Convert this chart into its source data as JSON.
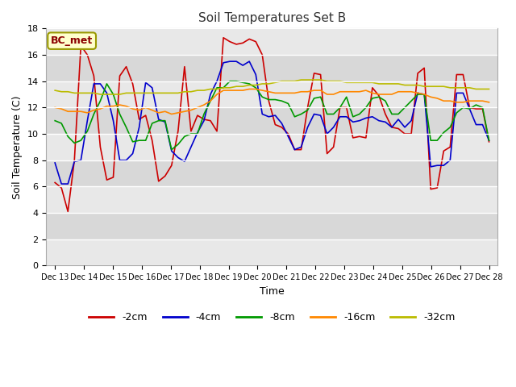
{
  "title": "Soil Temperatures Set B",
  "xlabel": "Time",
  "ylabel": "Soil Temperature (C)",
  "annotation": "BC_met",
  "ylim": [
    0,
    18
  ],
  "yticks": [
    0,
    2,
    4,
    6,
    8,
    10,
    12,
    14,
    16,
    18
  ],
  "xtick_labels": [
    "Dec 13",
    "Dec 14",
    "Dec 15",
    "Dec 16",
    "Dec 17",
    "Dec 18",
    "Dec 19",
    "Dec 20",
    "Dec 21",
    "Dec 22",
    "Dec 23",
    "Dec 24",
    "Dec 25",
    "Dec 26",
    "Dec 27",
    "Dec 28"
  ],
  "series_colors": [
    "#cc0000",
    "#0000cc",
    "#009900",
    "#ff8800",
    "#bbbb00"
  ],
  "series_names": [
    "-2cm",
    "-4cm",
    "-8cm",
    "-16cm",
    "-32cm"
  ],
  "background_color": "#ffffff",
  "plot_bg_light": "#e8e8e8",
  "plot_bg_dark": "#d0d0d0",
  "grid_color": "#ffffff",
  "series_linewidth": 1.2,
  "t_2cm": [
    6.3,
    5.9,
    4.1,
    8.0,
    16.7,
    16.0,
    14.4,
    9.0,
    6.5,
    6.7,
    14.4,
    15.1,
    13.8,
    11.1,
    11.4,
    9.5,
    6.4,
    6.8,
    7.6,
    10.2,
    15.1,
    10.2,
    11.4,
    11.1,
    11.0,
    10.2,
    17.3,
    17.0,
    16.8,
    16.9,
    17.2,
    17.0,
    16.0,
    12.5,
    10.7,
    10.5,
    10.0,
    8.8,
    8.8,
    12.0,
    14.6,
    14.5,
    8.5,
    9.0,
    12.0,
    12.0,
    9.7,
    9.8,
    9.7,
    13.5,
    12.9,
    11.5,
    10.5,
    10.4,
    10.0,
    10.0,
    14.6,
    15.0,
    5.8,
    5.9,
    8.7,
    9.0,
    14.5,
    14.5,
    12.0,
    11.9,
    11.9,
    9.4
  ],
  "t_4cm": [
    7.8,
    6.2,
    6.2,
    7.9,
    8.0,
    11.0,
    13.8,
    13.8,
    13.1,
    11.0,
    8.0,
    8.0,
    8.5,
    10.5,
    13.9,
    13.5,
    11.1,
    10.9,
    8.7,
    8.2,
    7.9,
    9.0,
    10.1,
    11.0,
    13.0,
    14.0,
    15.4,
    15.5,
    15.5,
    15.2,
    15.5,
    14.5,
    11.5,
    11.3,
    11.4,
    10.8,
    9.8,
    8.8,
    9.0,
    10.5,
    11.5,
    11.4,
    10.0,
    10.5,
    11.3,
    11.3,
    10.9,
    11.0,
    11.2,
    11.3,
    11.0,
    10.9,
    10.5,
    11.1,
    10.5,
    11.0,
    13.1,
    13.0,
    7.5,
    7.6,
    7.6,
    8.0,
    13.1,
    13.1,
    11.9,
    10.7,
    10.7,
    9.5
  ],
  "t_8cm": [
    11.0,
    10.8,
    9.8,
    9.3,
    9.5,
    10.2,
    11.5,
    12.5,
    13.8,
    13.0,
    11.5,
    10.5,
    9.4,
    9.5,
    9.5,
    10.8,
    11.0,
    11.0,
    8.8,
    9.2,
    9.8,
    10.0,
    10.0,
    11.5,
    12.5,
    13.5,
    13.5,
    14.0,
    14.0,
    13.9,
    13.8,
    13.5,
    12.8,
    12.6,
    12.6,
    12.5,
    12.3,
    11.3,
    11.5,
    11.8,
    12.7,
    12.8,
    11.5,
    11.5,
    12.0,
    12.8,
    11.3,
    11.5,
    12.0,
    12.7,
    12.8,
    12.5,
    11.5,
    11.5,
    12.0,
    12.5,
    13.0,
    13.0,
    9.5,
    9.5,
    10.1,
    10.5,
    11.6,
    12.0,
    11.9,
    12.2,
    12.0,
    9.5
  ],
  "t_16cm": [
    12.0,
    11.9,
    11.7,
    11.7,
    11.7,
    11.6,
    11.8,
    11.9,
    12.1,
    12.1,
    12.2,
    12.1,
    11.9,
    11.8,
    12.0,
    11.8,
    11.6,
    11.7,
    11.5,
    11.6,
    11.7,
    11.8,
    12.0,
    12.2,
    12.5,
    13.0,
    13.3,
    13.3,
    13.3,
    13.3,
    13.4,
    13.4,
    13.3,
    13.2,
    13.1,
    13.1,
    13.1,
    13.1,
    13.2,
    13.2,
    13.3,
    13.3,
    13.0,
    13.0,
    13.2,
    13.2,
    13.2,
    13.2,
    13.3,
    13.1,
    13.0,
    13.0,
    13.0,
    13.2,
    13.2,
    13.2,
    13.1,
    13.0,
    12.8,
    12.7,
    12.5,
    12.5,
    12.4,
    12.4,
    12.5,
    12.5,
    12.5,
    12.4
  ],
  "t_32cm": [
    13.3,
    13.2,
    13.2,
    13.1,
    13.1,
    13.1,
    13.1,
    13.0,
    13.0,
    13.0,
    13.0,
    13.1,
    13.1,
    13.1,
    13.1,
    13.1,
    13.1,
    13.1,
    13.1,
    13.1,
    13.2,
    13.2,
    13.3,
    13.3,
    13.4,
    13.4,
    13.5,
    13.5,
    13.6,
    13.6,
    13.7,
    13.7,
    13.8,
    13.8,
    13.9,
    14.0,
    14.0,
    14.0,
    14.1,
    14.1,
    14.1,
    14.1,
    14.0,
    14.0,
    14.0,
    13.9,
    13.9,
    13.9,
    13.9,
    13.9,
    13.8,
    13.8,
    13.8,
    13.8,
    13.7,
    13.7,
    13.7,
    13.6,
    13.6,
    13.6,
    13.6,
    13.5,
    13.5,
    13.5,
    13.5,
    13.4,
    13.4,
    13.4
  ]
}
